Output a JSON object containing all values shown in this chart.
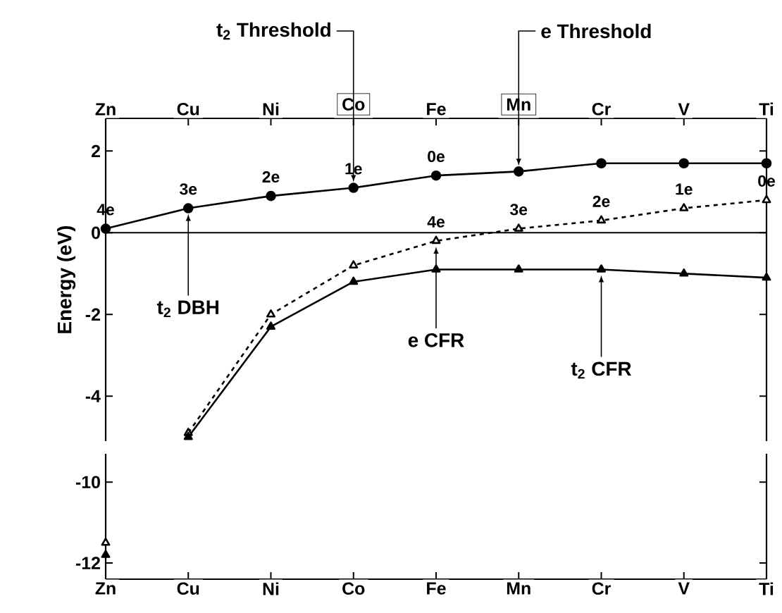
{
  "chart_data": [
    {
      "type": "line",
      "categories": [
        "Zn",
        "Cu",
        "Ni",
        "Co",
        "Fe",
        "Mn",
        "Cr",
        "V",
        "Ti"
      ],
      "ylabel": "Energy (eV)",
      "ylim": [
        -5.1,
        2.8
      ],
      "yticks": [
        -4,
        -2,
        0,
        2
      ],
      "ref_lines": [
        {
          "axis": "y",
          "value": 0
        }
      ],
      "annotations": [
        {
          "text": "t$_{2}$ Threshold",
          "x": "Co",
          "y": 1.1
        },
        {
          "text": "e Threshold",
          "x": "Mn",
          "y": 1.5
        },
        {
          "text": "t$_{2}$ DBH",
          "x": "Cu",
          "y": 0.6
        },
        {
          "text": "e CFR",
          "x": "Fe",
          "y": -0.2
        },
        {
          "text": "t$_{2}$ CFR",
          "x": "Cr",
          "y": -0.9
        },
        {
          "text": "4e",
          "x": "Zn",
          "y": 0.1
        },
        {
          "text": "3e",
          "x": "Cu",
          "y": 0.6
        },
        {
          "text": "2e",
          "x": "Ni",
          "y": 0.9
        },
        {
          "text": "1e",
          "x": "Co",
          "y": 1.1
        },
        {
          "text": "0e",
          "x": "Fe",
          "y": 1.4
        },
        {
          "text": "4e",
          "x": "Fe",
          "y": -0.2
        },
        {
          "text": "3e",
          "x": "Mn",
          "y": 0.1
        },
        {
          "text": "2e",
          "x": "Cr",
          "y": 0.3
        },
        {
          "text": "1e",
          "x": "V",
          "y": 0.6
        },
        {
          "text": "0e",
          "x": "Ti",
          "y": 0.8
        }
      ],
      "series": [
        {
          "color": "#000000",
          "marker": "circle",
          "line_style": "solid",
          "values": [
            0.1,
            0.6,
            0.9,
            1.1,
            1.4,
            1.5,
            1.7,
            1.7,
            1.7
          ]
        },
        {
          "color": "#000000",
          "marker": "triangle",
          "line_style": "dashed",
          "values": [
            null,
            -4.9,
            -2.0,
            -0.8,
            -0.2,
            0.1,
            0.3,
            0.6,
            0.8
          ]
        },
        {
          "color": "#000000",
          "marker": "triangle",
          "line_style": "solid",
          "values": [
            null,
            -5.0,
            -2.3,
            -1.2,
            -0.9,
            -0.9,
            -0.9,
            -1.0,
            -1.1
          ]
        }
      ]
    },
    {
      "type": "line",
      "categories": [
        "Zn",
        "Cu",
        "Ni",
        "Co",
        "Fe",
        "Mn",
        "Cr",
        "V",
        "Ti"
      ],
      "ylim": [
        -12.4,
        -9.3
      ],
      "yticks": [
        -12,
        -10
      ],
      "series": [
        {
          "color": "#000000",
          "marker": "triangle",
          "line_style": "dashed",
          "values": [
            -11.5,
            null,
            null,
            null,
            null,
            null,
            null,
            null,
            null
          ]
        },
        {
          "color": "#000000",
          "marker": "triangle",
          "line_style": "solid",
          "values": [
            -11.8,
            null,
            null,
            null,
            null,
            null,
            null,
            null,
            null
          ]
        }
      ]
    }
  ]
}
